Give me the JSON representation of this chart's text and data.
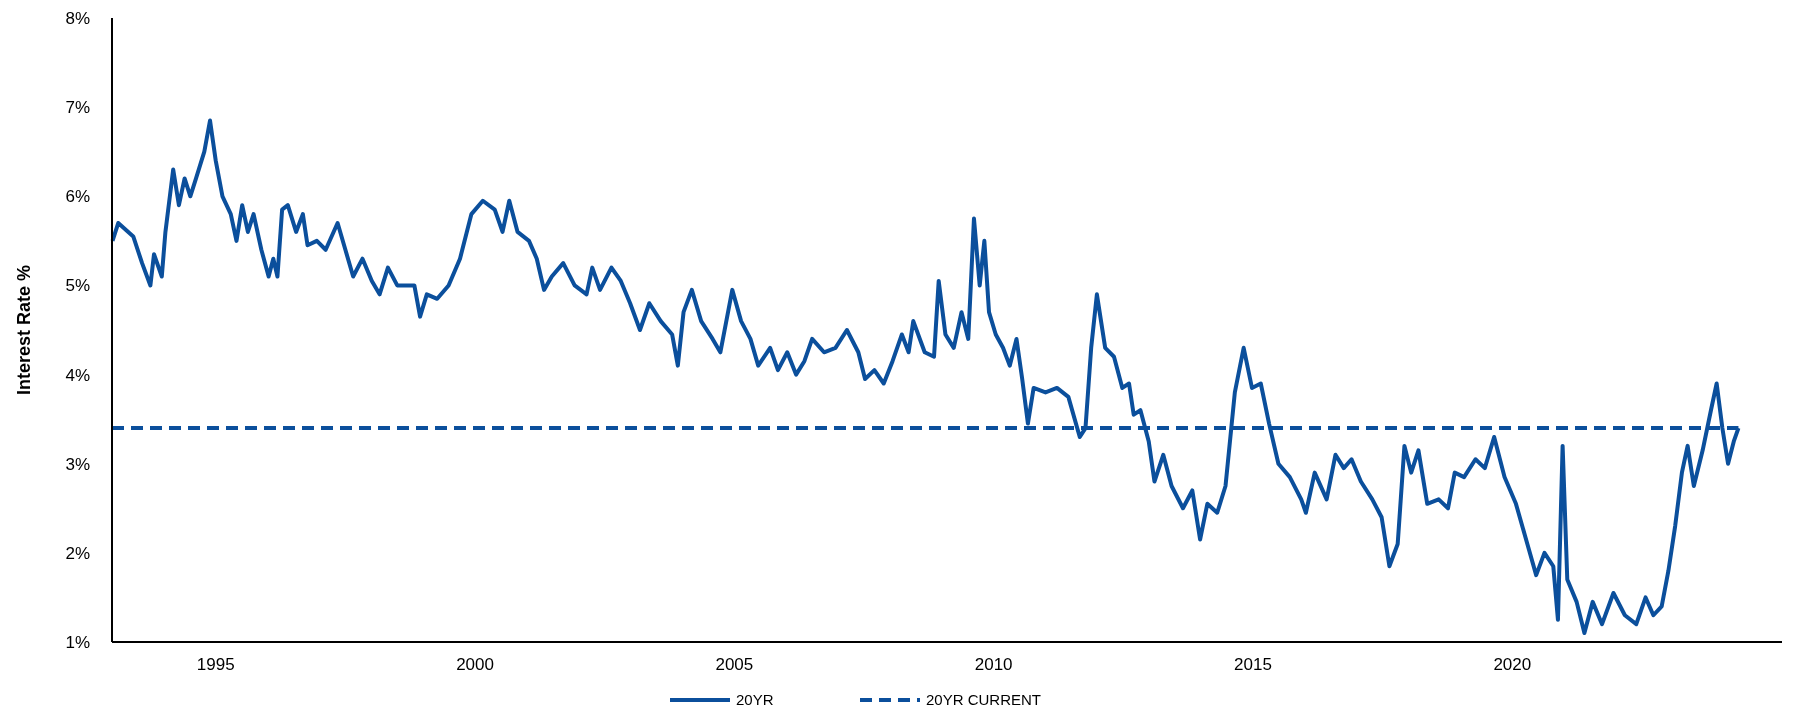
{
  "chart_data": {
    "type": "line",
    "ylabel": "Interest Rate %",
    "xlim": [
      1993,
      2025.2
    ],
    "xticks": [
      1995,
      2000,
      2005,
      2010,
      2015,
      2020
    ],
    "ylim": [
      1,
      8
    ],
    "yticks": [
      {
        "value": 1,
        "label": "1%"
      },
      {
        "value": 2,
        "label": "2%"
      },
      {
        "value": 3,
        "label": "3%"
      },
      {
        "value": 4,
        "label": "4%"
      },
      {
        "value": 5,
        "label": "5%"
      },
      {
        "value": 6,
        "label": "6%"
      },
      {
        "value": 7,
        "label": "7%"
      },
      {
        "value": 8,
        "label": "8%"
      }
    ],
    "grid": false,
    "legend": "bottom",
    "marker": "none",
    "series": [
      {
        "name": "20YR",
        "color": "#0b4f9c",
        "line_style": "solid",
        "x": [
          1993.01,
          1993.12,
          1993.41,
          1993.58,
          1993.74,
          1993.81,
          1993.96,
          1994.03,
          1994.18,
          1994.29,
          1994.4,
          1994.51,
          1994.62,
          1994.78,
          1994.89,
          1995.0,
          1995.13,
          1995.29,
          1995.4,
          1995.51,
          1995.62,
          1995.73,
          1995.88,
          1996.02,
          1996.11,
          1996.19,
          1996.28,
          1996.39,
          1996.55,
          1996.68,
          1996.77,
          1996.95,
          1997.12,
          1997.35,
          1997.5,
          1997.65,
          1997.83,
          1998.01,
          1998.16,
          1998.32,
          1998.5,
          1998.83,
          1998.94,
          1999.07,
          1999.27,
          1999.49,
          1999.71,
          1999.93,
          2000.15,
          2000.38,
          2000.53,
          2000.66,
          2000.82,
          2001.04,
          2001.19,
          2001.33,
          2001.48,
          2001.7,
          2001.92,
          2002.15,
          2002.26,
          2002.41,
          2002.63,
          2002.81,
          2002.99,
          2003.18,
          2003.36,
          2003.58,
          2003.8,
          2003.91,
          2004.02,
          2004.18,
          2004.36,
          2004.58,
          2004.73,
          2004.96,
          2005.13,
          2005.31,
          2005.46,
          2005.69,
          2005.84,
          2006.02,
          2006.19,
          2006.35,
          2006.5,
          2006.73,
          2006.95,
          2007.17,
          2007.39,
          2007.52,
          2007.7,
          2007.88,
          2008.05,
          2008.23,
          2008.36,
          2008.45,
          2008.67,
          2008.85,
          2008.94,
          2009.07,
          2009.23,
          2009.38,
          2009.51,
          2009.62,
          2009.73,
          2009.82,
          2009.91,
          2010.04,
          2010.18,
          2010.31,
          2010.44,
          2010.55,
          2010.66,
          2010.77,
          2011.0,
          2011.22,
          2011.44,
          2011.66,
          2011.77,
          2011.88,
          2011.99,
          2012.15,
          2012.32,
          2012.48,
          2012.61,
          2012.7,
          2012.83,
          2012.99,
          2013.1,
          2013.27,
          2013.43,
          2013.65,
          2013.83,
          2013.98,
          2014.12,
          2014.31,
          2014.47,
          2014.65,
          2014.82,
          2014.98,
          2015.15,
          2015.31,
          2015.49,
          2015.71,
          2015.93,
          2016.02,
          2016.19,
          2016.42,
          2016.59,
          2016.75,
          2016.9,
          2017.08,
          2017.3,
          2017.48,
          2017.63,
          2017.79,
          2017.92,
          2018.05,
          2018.19,
          2018.36,
          2018.58,
          2018.76,
          2018.89,
          2019.07,
          2019.29,
          2019.47,
          2019.65,
          2019.85,
          2020.07,
          2020.29,
          2020.46,
          2020.62,
          2020.79,
          2020.88,
          2020.97,
          2021.06,
          2021.24,
          2021.39,
          2021.55,
          2021.73,
          2021.95,
          2022.17,
          2022.39,
          2022.57,
          2022.72,
          2022.88,
          2023.01,
          2023.14,
          2023.27,
          2023.38,
          2023.5,
          2023.67,
          2023.83,
          2023.94,
          2024.05,
          2024.16,
          2024.27,
          2024.36
        ],
        "values": [
          5.5,
          5.7,
          5.55,
          5.25,
          5.0,
          5.35,
          5.1,
          5.6,
          6.3,
          5.9,
          6.2,
          6.0,
          6.2,
          6.5,
          6.85,
          6.4,
          6.0,
          5.8,
          5.5,
          5.9,
          5.6,
          5.8,
          5.4,
          5.1,
          5.3,
          5.1,
          5.85,
          5.9,
          5.6,
          5.8,
          5.45,
          5.5,
          5.4,
          5.7,
          5.4,
          5.1,
          5.3,
          5.05,
          4.9,
          5.2,
          5.0,
          5.0,
          4.65,
          4.9,
          4.85,
          5.0,
          5.3,
          5.8,
          5.95,
          5.85,
          5.6,
          5.95,
          5.6,
          5.5,
          5.3,
          4.95,
          5.1,
          5.25,
          5.0,
          4.9,
          5.2,
          4.95,
          5.2,
          5.05,
          4.8,
          4.5,
          4.8,
          4.6,
          4.45,
          4.1,
          4.7,
          4.95,
          4.6,
          4.4,
          4.25,
          4.95,
          4.6,
          4.4,
          4.1,
          4.3,
          4.05,
          4.25,
          4.0,
          4.15,
          4.4,
          4.25,
          4.3,
          4.5,
          4.25,
          3.95,
          4.05,
          3.9,
          4.15,
          4.45,
          4.25,
          4.6,
          4.25,
          4.2,
          5.05,
          4.45,
          4.3,
          4.7,
          4.4,
          5.75,
          5.0,
          5.5,
          4.7,
          4.45,
          4.3,
          4.1,
          4.4,
          3.95,
          3.45,
          3.85,
          3.8,
          3.85,
          3.75,
          3.3,
          3.4,
          4.3,
          4.9,
          4.3,
          4.2,
          3.85,
          3.9,
          3.55,
          3.6,
          3.25,
          2.8,
          3.1,
          2.75,
          2.5,
          2.7,
          2.15,
          2.55,
          2.45,
          2.75,
          3.8,
          4.3,
          3.85,
          3.9,
          3.45,
          3.0,
          2.85,
          2.6,
          2.45,
          2.9,
          2.6,
          3.1,
          2.95,
          3.05,
          2.8,
          2.6,
          2.4,
          1.85,
          2.1,
          3.2,
          2.9,
          3.15,
          2.55,
          2.6,
          2.5,
          2.9,
          2.85,
          3.05,
          2.95,
          3.3,
          2.85,
          2.55,
          2.1,
          1.75,
          2.0,
          1.85,
          1.25,
          3.2,
          1.7,
          1.45,
          1.1,
          1.45,
          1.2,
          1.55,
          1.3,
          1.2,
          1.5,
          1.3,
          1.4,
          1.8,
          2.3,
          2.9,
          3.2,
          2.75,
          3.15,
          3.6,
          3.9,
          3.4,
          3.0,
          3.25,
          3.4
        ]
      },
      {
        "name": "20YR CURRENT",
        "color": "#0b4f9c",
        "line_style": "dashed",
        "x": [
          1993.0,
          2024.36
        ],
        "values": [
          3.4,
          3.4
        ]
      }
    ]
  }
}
